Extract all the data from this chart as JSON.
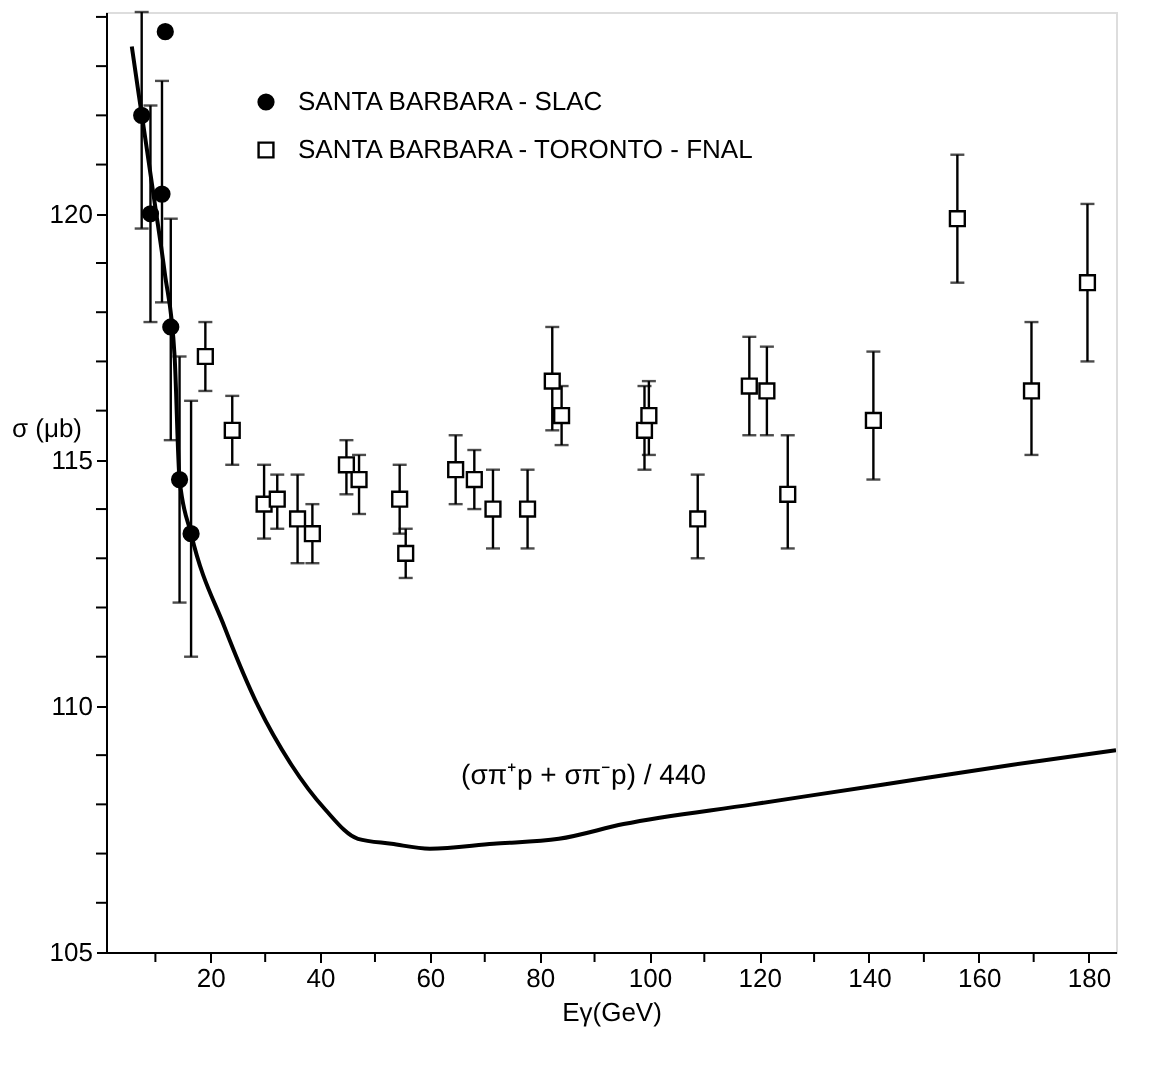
{
  "chart_data": {
    "type": "scatter",
    "xlabel": "Eγ(GeV)",
    "ylabel": "σ (μb)",
    "xlim": [
      1,
      185
    ],
    "ylim": [
      105,
      124.1
    ],
    "xticks": [
      {
        "value": 10,
        "label": null
      },
      20,
      {
        "value": 30,
        "label": null
      },
      40,
      {
        "value": 50,
        "label": null
      },
      60,
      {
        "value": 70,
        "label": null
      },
      80,
      {
        "value": 90,
        "label": null
      },
      100,
      {
        "value": 110,
        "label": null
      },
      120,
      {
        "value": 130,
        "label": null
      },
      140,
      {
        "value": 150,
        "label": null
      },
      160,
      {
        "value": 170,
        "label": null
      },
      180
    ],
    "yticks": [
      105,
      {
        "value": 106,
        "label": null
      },
      {
        "value": 107,
        "label": null
      },
      {
        "value": 108,
        "label": null
      },
      {
        "value": 109,
        "label": null
      },
      110,
      {
        "value": 111,
        "label": null
      },
      {
        "value": 112,
        "label": null
      },
      {
        "value": 113,
        "label": null
      },
      {
        "value": 114,
        "label": null
      },
      115,
      {
        "value": 116,
        "label": null
      },
      {
        "value": 117,
        "label": null
      },
      {
        "value": 118,
        "label": null
      },
      {
        "value": 119,
        "label": null
      },
      120,
      {
        "value": 121,
        "label": null
      },
      {
        "value": 122,
        "label": null
      },
      {
        "value": 123,
        "label": null
      },
      {
        "value": 124,
        "label": null
      }
    ],
    "grid": false,
    "legend": "top left",
    "series": [
      {
        "name": "SANTA BARBARA - SLAC",
        "color": "#000000",
        "marker": "circle",
        "x": [
          7.5,
          9.1,
          11.2,
          11.8,
          12.8,
          14.4,
          16.5
        ],
        "values": [
          122.0,
          120.0,
          120.4,
          123.7,
          117.7,
          114.6,
          113.5
        ],
        "errors": [
          [
            119.7,
            124.1
          ],
          [
            117.8,
            122.2
          ],
          [
            118.2,
            122.7
          ],
          null,
          [
            115.4,
            119.9
          ],
          [
            112.1,
            117.1
          ],
          [
            111.0,
            116.2
          ]
        ]
      },
      {
        "name": "SANTA BARBARA - TORONTO - FNAL",
        "color": "#000000",
        "marker": "square",
        "x": [
          19.1,
          24.0,
          29.8,
          32.2,
          35.9,
          38.6,
          44.8,
          47.1,
          54.5,
          55.6,
          64.7,
          68.1,
          71.5,
          77.8,
          82.3,
          84.0,
          99.1,
          99.9,
          108.8,
          118.2,
          121.4,
          125.2,
          140.8,
          156.1,
          169.6,
          179.8
        ],
        "values": [
          117.1,
          115.6,
          114.1,
          114.2,
          113.8,
          113.5,
          114.9,
          114.6,
          114.2,
          113.1,
          114.8,
          114.6,
          114.0,
          114.0,
          116.6,
          115.9,
          115.6,
          115.9,
          113.8,
          116.5,
          116.4,
          114.3,
          115.8,
          119.9,
          116.4,
          118.6
        ],
        "errors": [
          [
            116.4,
            117.8
          ],
          [
            114.9,
            116.3
          ],
          [
            113.4,
            114.9
          ],
          [
            113.6,
            114.7
          ],
          [
            112.9,
            114.7
          ],
          [
            112.9,
            114.1
          ],
          [
            114.3,
            115.4
          ],
          [
            113.9,
            115.1
          ],
          [
            113.5,
            114.9
          ],
          [
            112.6,
            113.6
          ],
          [
            114.1,
            115.5
          ],
          [
            114.0,
            115.2
          ],
          [
            113.2,
            114.8
          ],
          [
            113.2,
            114.8
          ],
          [
            115.6,
            117.7
          ],
          [
            115.3,
            116.5
          ],
          [
            114.8,
            116.5
          ],
          [
            115.1,
            116.6
          ],
          [
            113.0,
            114.7
          ],
          [
            115.5,
            117.5
          ],
          [
            115.5,
            117.3
          ],
          [
            113.2,
            115.5
          ],
          [
            114.6,
            117.2
          ],
          [
            118.6,
            121.2
          ],
          [
            115.1,
            117.8
          ],
          [
            117.0,
            120.2
          ]
        ]
      },
      {
        "color": "#000000",
        "type": "line",
        "marker": "none",
        "line_style": "solid",
        "x": [
          5.7,
          7.0,
          8.2,
          9.9,
          11.7,
          13.5,
          14.4,
          16.5,
          22.6,
          28.7,
          34.8,
          40.9,
          46.9,
          53.0,
          60.0,
          71.6,
          83.5,
          95.3,
          118.8,
          142.4,
          165.9,
          185.0
        ],
        "values": [
          123.4,
          122.4,
          121.5,
          120.2,
          118.8,
          117.1,
          114.6,
          113.5,
          111.6,
          110.0,
          108.8,
          107.9,
          107.3,
          107.2,
          107.1,
          107.2,
          107.3,
          107.6,
          108.0,
          108.4,
          108.8,
          109.1
        ]
      }
    ],
    "annotations": [
      {
        "text": "(σπ⁺p + σπ⁻p) / 440",
        "x": 88,
        "y": 107.4
      }
    ]
  }
}
